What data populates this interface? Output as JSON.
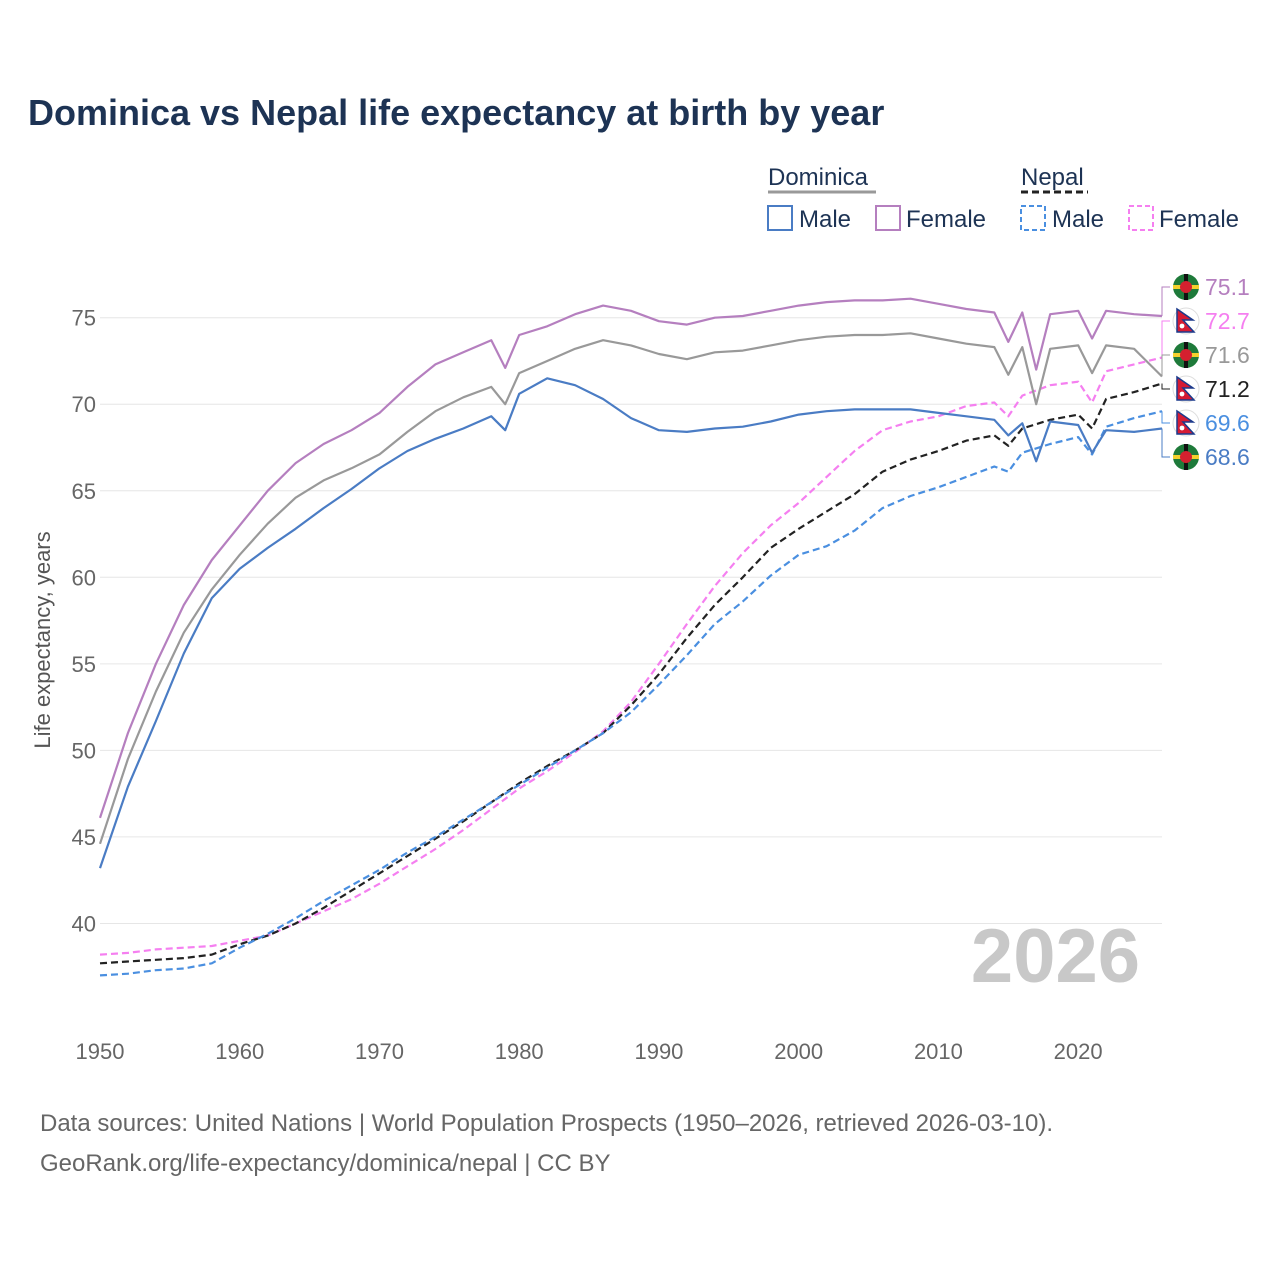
{
  "title": "Dominica vs Nepal life expectancy at birth by year",
  "year_label": "2026",
  "sources": {
    "line1": "Data sources: United Nations | World Population Prospects (1950–2026, retrieved 2026-03-10).",
    "line2": "GeoRank.org/life-expectancy/dominica/nepal | CC BY"
  },
  "legend": {
    "dominica": {
      "title": "Dominica",
      "male": "Male",
      "female": "Female"
    },
    "nepal": {
      "title": "Nepal",
      "male": "Male",
      "female": "Female"
    }
  },
  "colors": {
    "dominica_male": "#4a7cc4",
    "dominica_female": "#b57fbf",
    "dominica_total": "#999999",
    "nepal_male": "#4a8fe0",
    "nepal_female": "#f57ff0",
    "nepal_total": "#222222"
  },
  "chart_data": {
    "type": "line",
    "title": "Dominica vs Nepal life expectancy at birth by year",
    "xlabel": "",
    "ylabel": "Life expectancy, years",
    "xlim": [
      1950,
      2026
    ],
    "ylim": [
      35,
      76.6
    ],
    "x_ticks": [
      1950,
      1960,
      1970,
      1980,
      1990,
      2000,
      2010,
      2020
    ],
    "y_ticks": [
      40,
      45,
      50,
      55,
      60,
      65,
      70,
      75
    ],
    "series": [
      {
        "name": "Dominica Female",
        "country": "Dominica",
        "sex": "Female",
        "dash": false,
        "color": "#b57fbf",
        "end_label": "75.1",
        "x": [
          1950,
          1952,
          1954,
          1956,
          1958,
          1960,
          1962,
          1964,
          1966,
          1968,
          1970,
          1972,
          1974,
          1976,
          1978,
          1979,
          1980,
          1982,
          1984,
          1986,
          1988,
          1990,
          1992,
          1994,
          1996,
          1998,
          2000,
          2002,
          2004,
          2006,
          2008,
          2010,
          2012,
          2014,
          2015,
          2016,
          2017,
          2018,
          2020,
          2021,
          2022,
          2024,
          2026
        ],
        "y": [
          46.1,
          51.0,
          55.0,
          58.4,
          61.0,
          63.0,
          65.0,
          66.6,
          67.7,
          68.5,
          69.5,
          71.0,
          72.3,
          73.0,
          73.7,
          72.1,
          74.0,
          74.5,
          75.2,
          75.7,
          75.4,
          74.8,
          74.6,
          75.0,
          75.1,
          75.4,
          75.7,
          75.9,
          76.0,
          76.0,
          76.1,
          75.8,
          75.5,
          75.3,
          73.6,
          75.3,
          72.0,
          75.2,
          75.4,
          73.8,
          75.4,
          75.2,
          75.1
        ]
      },
      {
        "name": "Nepal Female",
        "country": "Nepal",
        "sex": "Female",
        "dash": true,
        "color": "#f57ff0",
        "end_label": "72.7",
        "x": [
          1950,
          1952,
          1954,
          1956,
          1958,
          1960,
          1962,
          1964,
          1966,
          1968,
          1970,
          1972,
          1974,
          1976,
          1978,
          1980,
          1982,
          1984,
          1986,
          1988,
          1990,
          1992,
          1994,
          1996,
          1998,
          2000,
          2002,
          2004,
          2006,
          2008,
          2010,
          2012,
          2014,
          2015,
          2016,
          2018,
          2020,
          2021,
          2022,
          2024,
          2026
        ],
        "y": [
          38.2,
          38.3,
          38.5,
          38.6,
          38.7,
          39.0,
          39.3,
          40.0,
          40.7,
          41.4,
          42.3,
          43.3,
          44.3,
          45.4,
          46.6,
          47.8,
          48.8,
          49.9,
          51.1,
          52.8,
          55.0,
          57.3,
          59.5,
          61.4,
          63.0,
          64.3,
          65.8,
          67.3,
          68.5,
          69.0,
          69.3,
          69.9,
          70.1,
          69.3,
          70.5,
          71.1,
          71.3,
          70.1,
          71.9,
          72.3,
          72.7
        ]
      },
      {
        "name": "Dominica Total",
        "country": "Dominica",
        "sex": "Total",
        "dash": false,
        "color": "#999999",
        "end_label": "71.6",
        "x": [
          1950,
          1952,
          1954,
          1956,
          1958,
          1960,
          1962,
          1964,
          1966,
          1968,
          1970,
          1972,
          1974,
          1976,
          1978,
          1979,
          1980,
          1982,
          1984,
          1986,
          1988,
          1990,
          1992,
          1994,
          1996,
          1998,
          2000,
          2002,
          2004,
          2006,
          2008,
          2010,
          2012,
          2014,
          2015,
          2016,
          2017,
          2018,
          2020,
          2021,
          2022,
          2024,
          2026
        ],
        "y": [
          44.6,
          49.5,
          53.4,
          56.8,
          59.3,
          61.3,
          63.1,
          64.6,
          65.6,
          66.3,
          67.1,
          68.4,
          69.6,
          70.4,
          71.0,
          70.0,
          71.8,
          72.5,
          73.2,
          73.7,
          73.4,
          72.9,
          72.6,
          73.0,
          73.1,
          73.4,
          73.7,
          73.9,
          74.0,
          74.0,
          74.1,
          73.8,
          73.5,
          73.3,
          71.7,
          73.3,
          70.0,
          73.2,
          73.4,
          71.8,
          73.4,
          73.2,
          71.6
        ]
      },
      {
        "name": "Nepal Total",
        "country": "Nepal",
        "sex": "Total",
        "dash": true,
        "color": "#222222",
        "end_label": "71.2",
        "x": [
          1950,
          1952,
          1954,
          1956,
          1958,
          1960,
          1962,
          1964,
          1966,
          1968,
          1970,
          1972,
          1974,
          1976,
          1978,
          1980,
          1982,
          1984,
          1986,
          1988,
          1990,
          1992,
          1994,
          1996,
          1998,
          2000,
          2002,
          2004,
          2006,
          2008,
          2010,
          2012,
          2014,
          2015,
          2016,
          2018,
          2020,
          2021,
          2022,
          2024,
          2026
        ],
        "y": [
          37.7,
          37.8,
          37.9,
          38.0,
          38.2,
          38.8,
          39.3,
          40.0,
          40.9,
          41.9,
          42.9,
          43.9,
          44.9,
          45.9,
          47.0,
          48.1,
          49.1,
          50.0,
          51.0,
          52.6,
          54.4,
          56.5,
          58.4,
          60.0,
          61.7,
          62.8,
          63.8,
          64.8,
          66.1,
          66.8,
          67.3,
          67.9,
          68.2,
          67.6,
          68.6,
          69.1,
          69.4,
          68.6,
          70.3,
          70.7,
          71.2
        ]
      },
      {
        "name": "Nepal Male",
        "country": "Nepal",
        "sex": "Male",
        "dash": true,
        "color": "#4a8fe0",
        "end_label": "69.6",
        "x": [
          1950,
          1952,
          1954,
          1956,
          1958,
          1960,
          1962,
          1964,
          1966,
          1968,
          1970,
          1972,
          1974,
          1976,
          1978,
          1980,
          1982,
          1984,
          1986,
          1988,
          1990,
          1992,
          1994,
          1996,
          1998,
          2000,
          2002,
          2004,
          2006,
          2008,
          2010,
          2012,
          2014,
          2015,
          2016,
          2018,
          2020,
          2021,
          2022,
          2024,
          2026
        ],
        "y": [
          37.0,
          37.1,
          37.3,
          37.4,
          37.7,
          38.6,
          39.4,
          40.3,
          41.3,
          42.2,
          43.1,
          44.1,
          45.0,
          46.0,
          47.0,
          48.0,
          49.0,
          50.0,
          51.0,
          52.2,
          53.8,
          55.5,
          57.3,
          58.6,
          60.1,
          61.3,
          61.8,
          62.7,
          64.0,
          64.7,
          65.2,
          65.8,
          66.4,
          66.1,
          67.2,
          67.7,
          68.1,
          67.1,
          68.7,
          69.2,
          69.6
        ]
      },
      {
        "name": "Dominica Male",
        "country": "Dominica",
        "sex": "Male",
        "dash": false,
        "color": "#4a7cc4",
        "end_label": "68.6",
        "x": [
          1950,
          1952,
          1954,
          1956,
          1958,
          1960,
          1962,
          1964,
          1966,
          1968,
          1970,
          1972,
          1974,
          1976,
          1978,
          1979,
          1980,
          1982,
          1984,
          1986,
          1988,
          1990,
          1992,
          1994,
          1996,
          1998,
          2000,
          2002,
          2004,
          2006,
          2008,
          2010,
          2012,
          2014,
          2015,
          2016,
          2017,
          2018,
          2020,
          2021,
          2022,
          2024,
          2026
        ],
        "y": [
          43.2,
          47.9,
          51.7,
          55.6,
          58.8,
          60.5,
          61.7,
          62.8,
          64.0,
          65.1,
          66.3,
          67.3,
          68.0,
          68.6,
          69.3,
          68.5,
          70.6,
          71.5,
          71.1,
          70.3,
          69.2,
          68.5,
          68.4,
          68.6,
          68.7,
          69.0,
          69.4,
          69.6,
          69.7,
          69.7,
          69.7,
          69.5,
          69.3,
          69.1,
          68.2,
          68.9,
          66.7,
          69.0,
          68.8,
          67.2,
          68.5,
          68.4,
          68.6
        ]
      }
    ],
    "legend_position": "top-right",
    "grid": true
  }
}
